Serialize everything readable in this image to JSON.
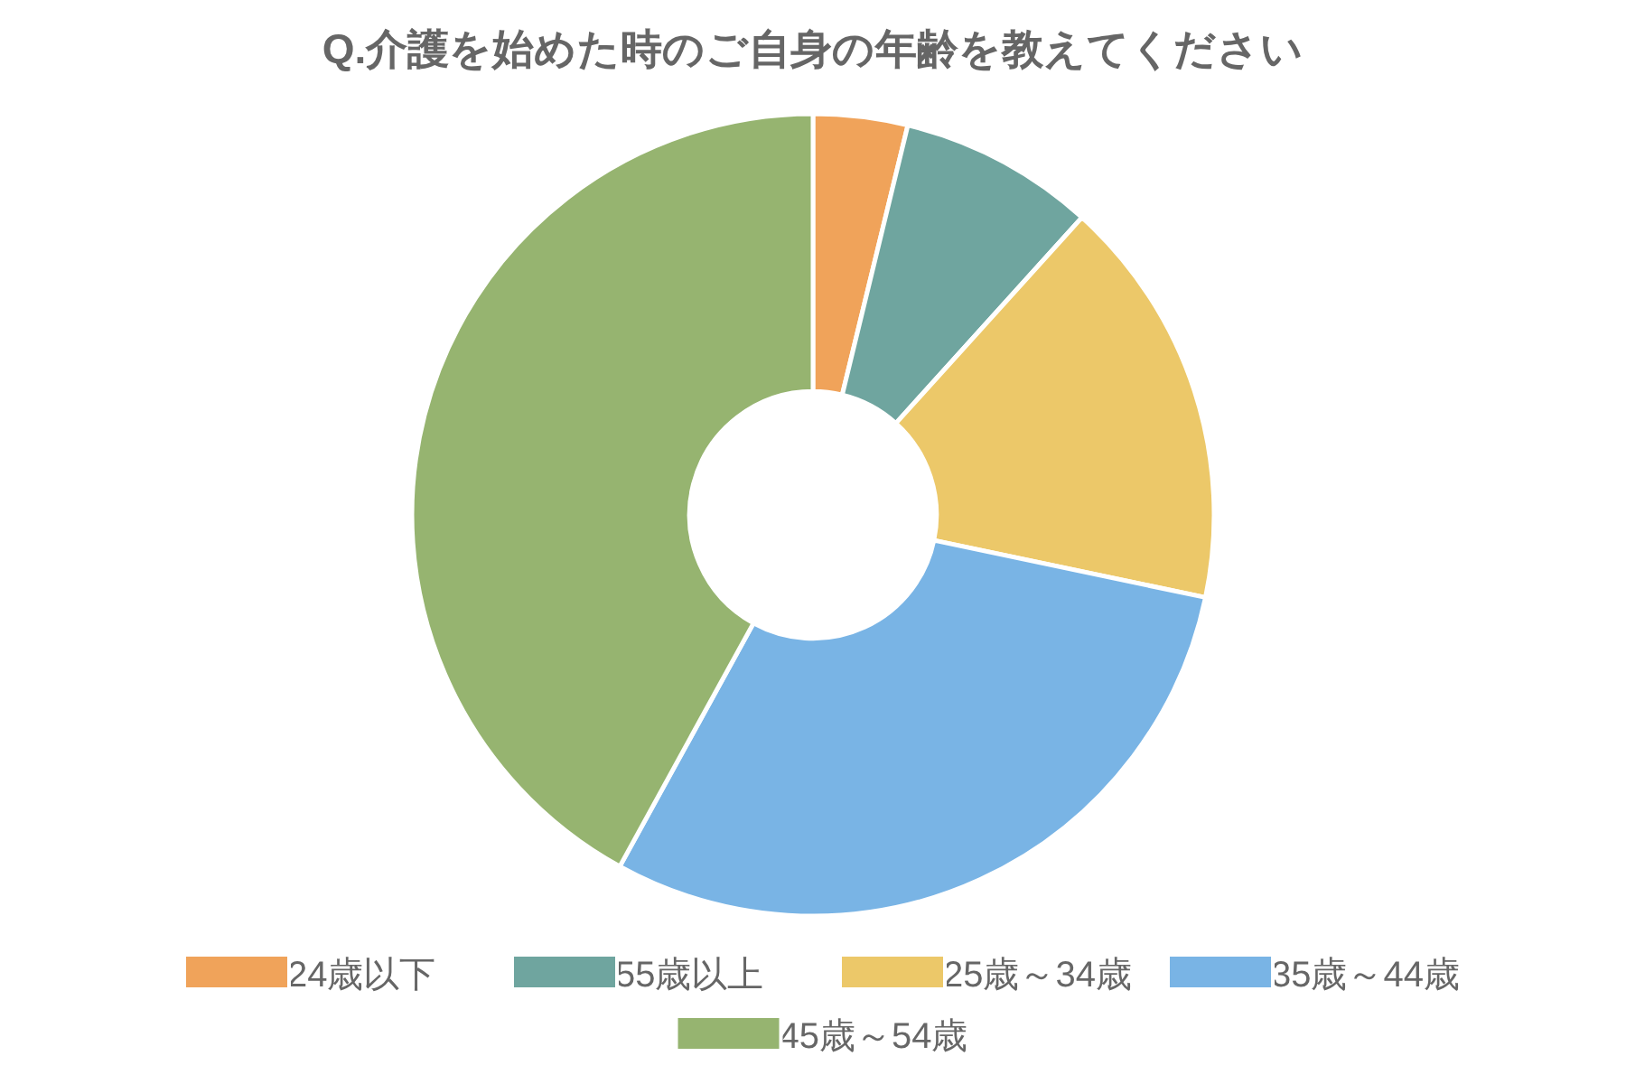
{
  "chart_data": {
    "type": "donut",
    "title": "Q.介護を始めた時のご自身の年齢を教えてください",
    "categories": [
      "24歳以下",
      "55歳以上",
      "25歳～34歳",
      "35歳～44歳",
      "45歳～54歳"
    ],
    "values": [
      3.8,
      7.9,
      16.6,
      29.7,
      42.0
    ],
    "colors": [
      "#f0a35a",
      "#6fa59f",
      "#ecc869",
      "#79b4e5",
      "#96b470"
    ],
    "legend": "bottom"
  }
}
